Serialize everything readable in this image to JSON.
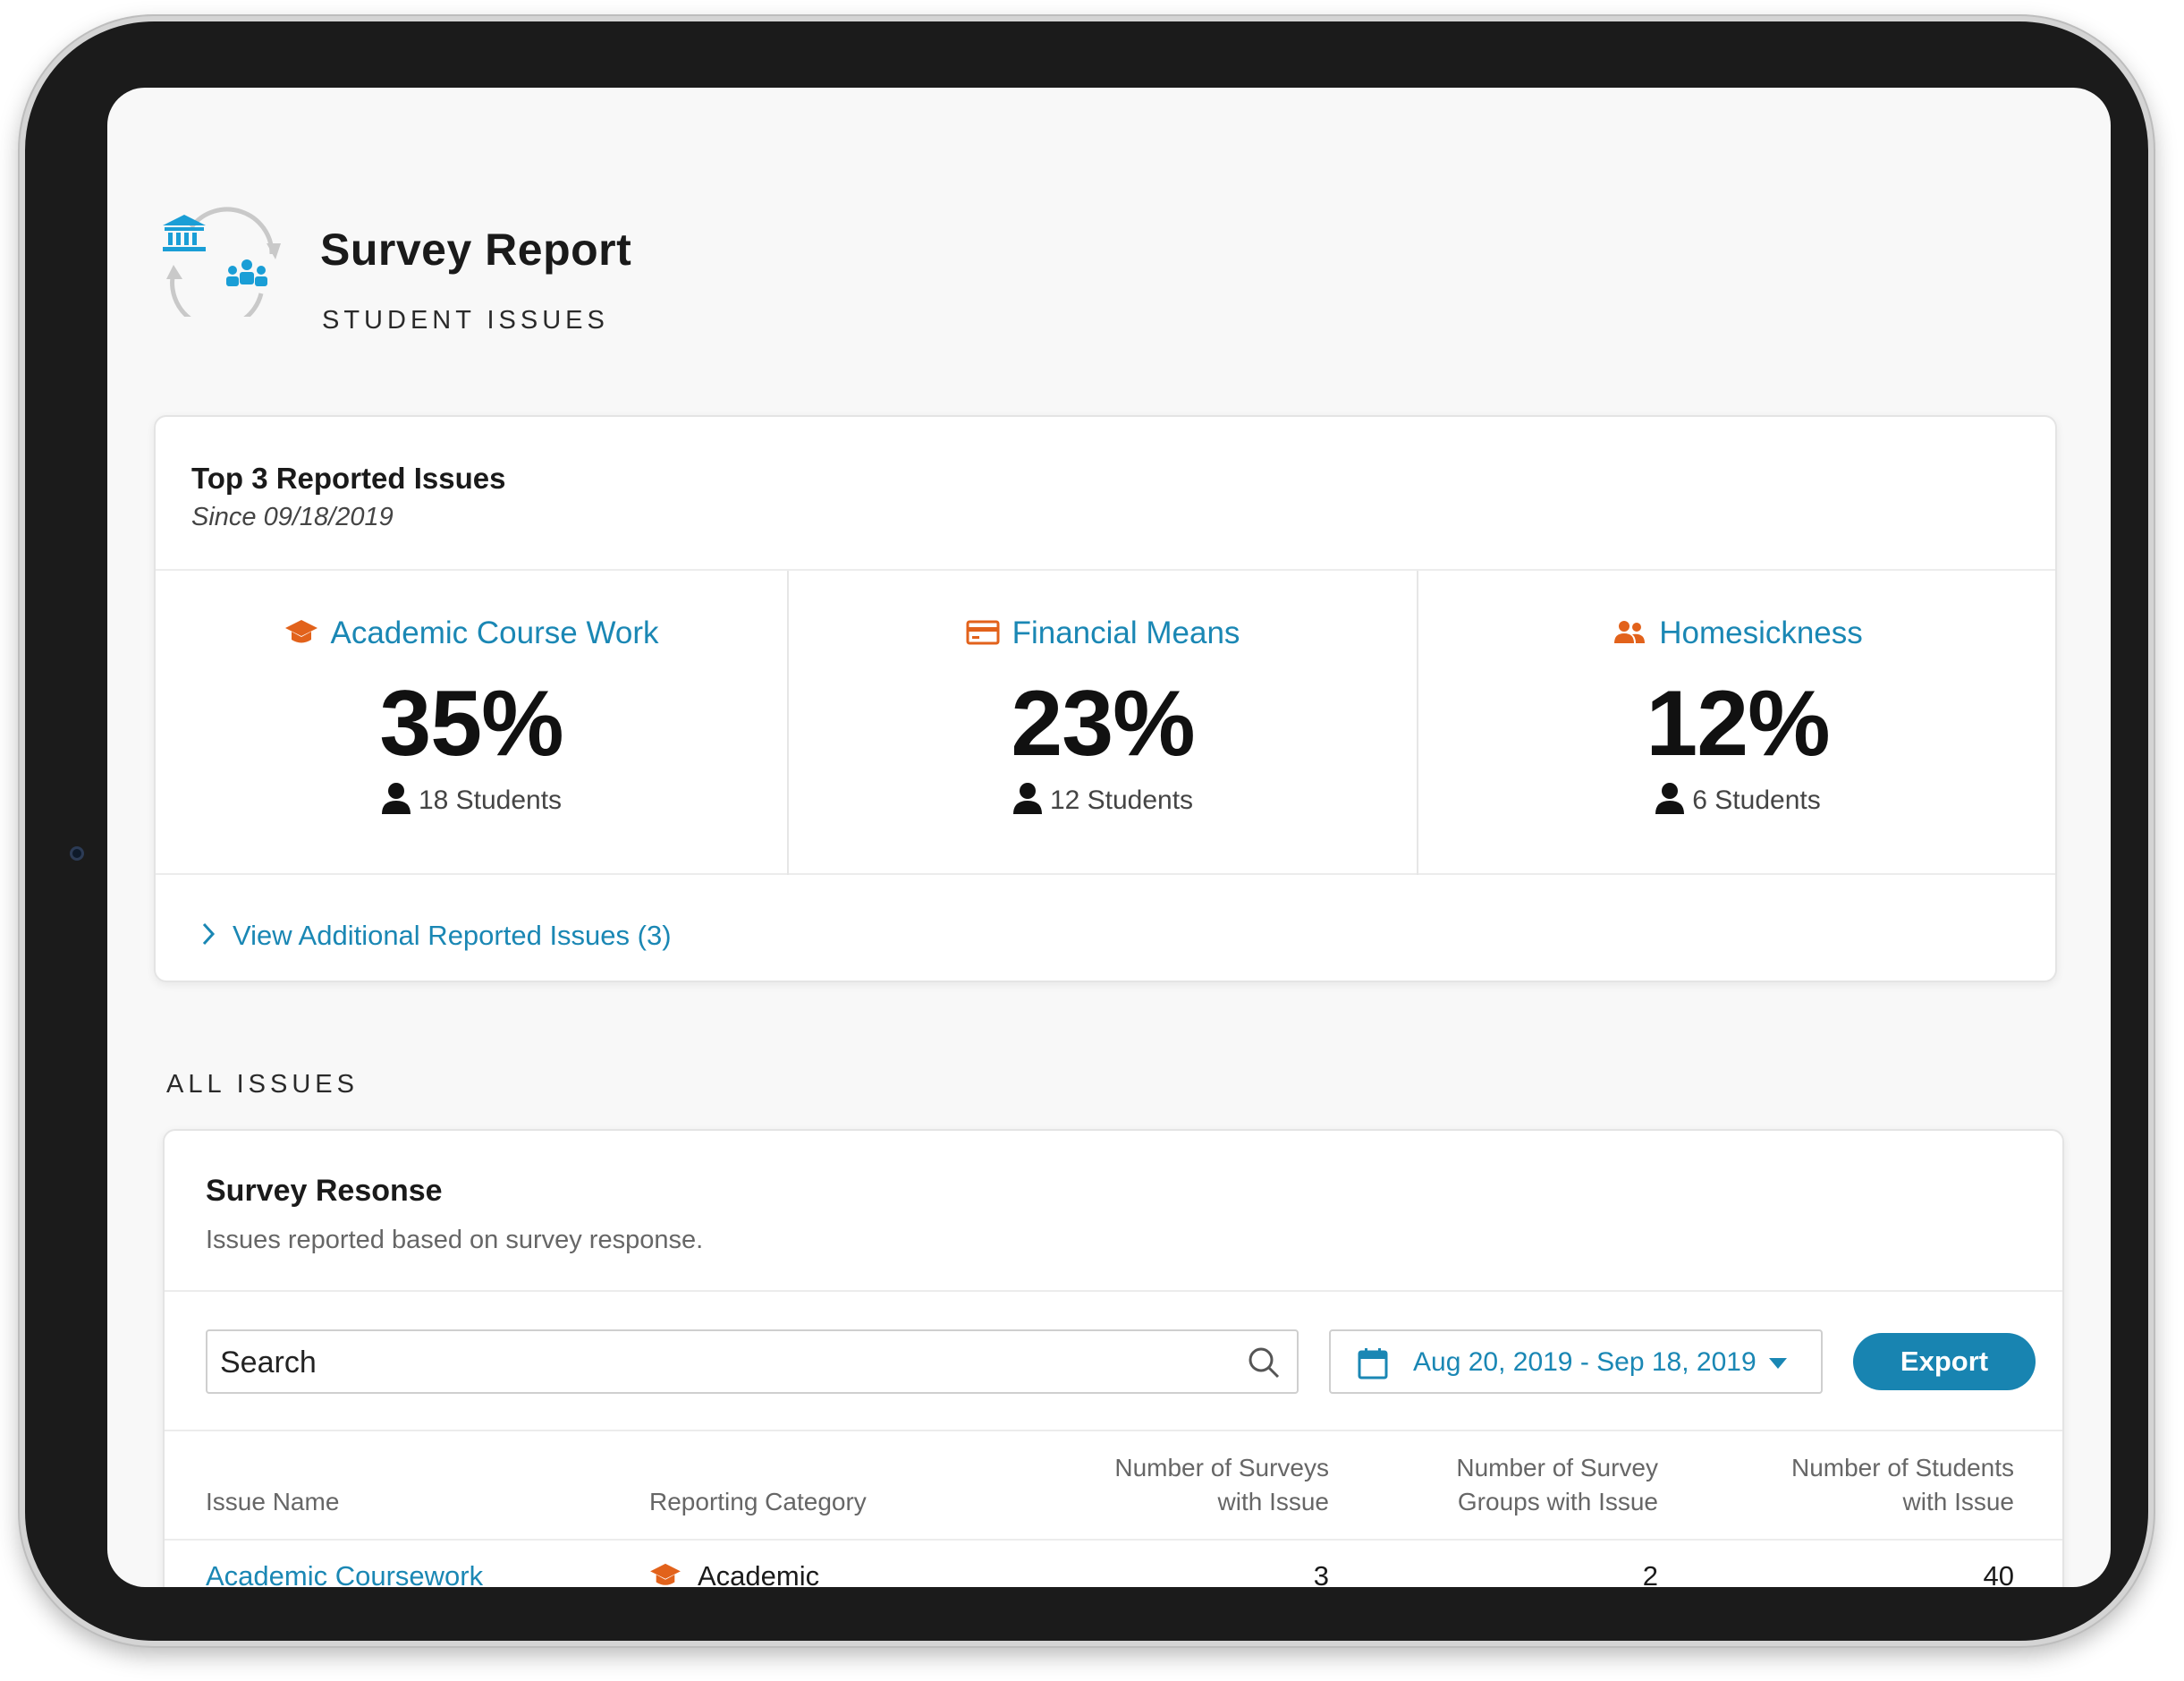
{
  "header": {
    "title": "Survey Report",
    "subtitle": "STUDENT ISSUES"
  },
  "top_issues": {
    "title": "Top 3 Reported Issues",
    "since": "Since 09/18/2019",
    "items": [
      {
        "label": "Academic Course Work",
        "percent": "35%",
        "students": "18 Students",
        "icon": "graduation-cap-icon"
      },
      {
        "label": "Financial Means",
        "percent": "23%",
        "students": "12 Students",
        "icon": "credit-card-icon"
      },
      {
        "label": "Homesickness",
        "percent": "12%",
        "students": "6 Students",
        "icon": "people-icon"
      }
    ],
    "view_more": "View Additional Reported Issues (3)"
  },
  "all_issues": {
    "section_label": "ALL ISSUES",
    "card_title": "Survey Resonse",
    "card_description": "Issues reported based on survey response.",
    "search_placeholder": "Search",
    "date_range": "Aug 20, 2019 - Sep 18, 2019",
    "export_label": "Export",
    "columns": {
      "issue_name": "Issue Name",
      "reporting_category": "Reporting Category",
      "surveys_line1": "Number of Surveys",
      "surveys_line2": "with  Issue",
      "groups_line1": "Number of Survey",
      "groups_line2": "Groups with Issue",
      "students_line1": "Number of Students",
      "students_line2": "with Issue"
    },
    "rows": [
      {
        "issue": "Academic Coursework",
        "category": "Academic",
        "surveys": "3",
        "groups": "2",
        "students": "40"
      }
    ]
  },
  "colors": {
    "accent_blue": "#1a87b4",
    "icon_orange": "#e2621b",
    "button_blue": "#1884b1"
  }
}
